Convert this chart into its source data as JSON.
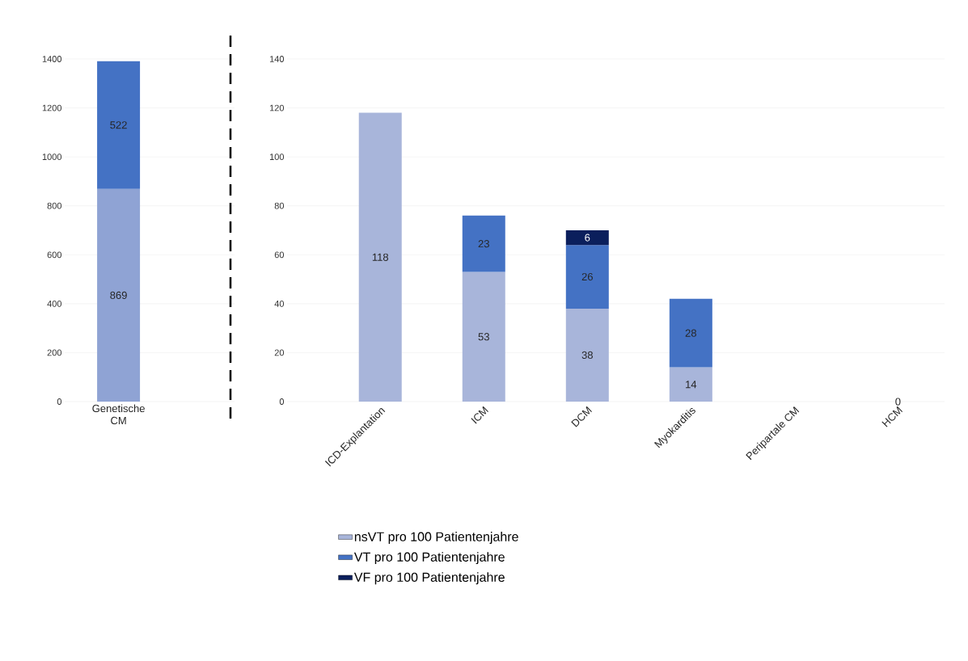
{
  "chart_data": [
    {
      "type": "bar",
      "stacked": true,
      "categories": [
        "Genetische CM"
      ],
      "ylim": [
        0,
        1400
      ],
      "yticks": [
        0,
        200,
        400,
        600,
        800,
        1000,
        1200,
        1400
      ],
      "grid": "y",
      "legend": false,
      "data_labels": true,
      "series": [
        {
          "color": "#8fa3d4",
          "values": [
            869
          ]
        },
        {
          "color": "#4472c4",
          "values": [
            522
          ]
        }
      ]
    },
    {
      "type": "bar",
      "stacked": true,
      "categories": [
        "ICD-Explantation",
        "ICM",
        "DCM",
        "Myokarditis",
        "Peripartale CM",
        "HCM"
      ],
      "ylim": [
        0,
        140
      ],
      "yticks": [
        0,
        20,
        40,
        60,
        80,
        100,
        120,
        140
      ],
      "grid": "y",
      "legend": "bottom",
      "series": [
        {
          "name": "nsVT pro 100 Patientenjahre",
          "color": "#a8b5da",
          "values": [
            118,
            53,
            38,
            14,
            0,
            0
          ],
          "value_labels": [
            "118",
            "53",
            "38",
            "14",
            null,
            "0"
          ]
        },
        {
          "name": "VT pro 100 Patientenjahre",
          "color": "#4472c4",
          "values": [
            null,
            23,
            26,
            28,
            null,
            null
          ],
          "value_labels": [
            null,
            "23",
            "26",
            "28",
            null,
            null
          ]
        },
        {
          "name": "VF pro 100 Patientenjahre",
          "color": "#0b1f5c",
          "values": [
            null,
            null,
            6,
            null,
            null,
            null
          ],
          "value_labels": [
            null,
            null,
            "6",
            null,
            null,
            null
          ]
        }
      ]
    }
  ]
}
